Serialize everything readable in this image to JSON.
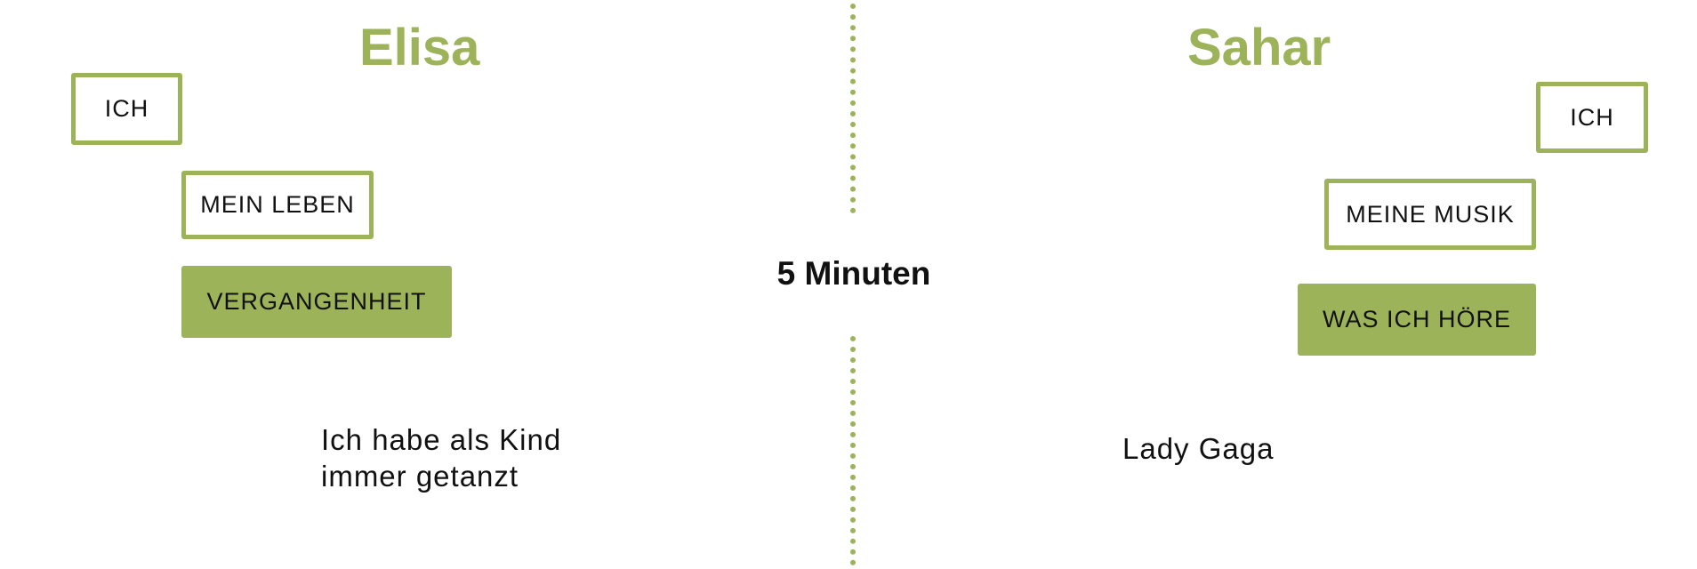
{
  "left": {
    "name": "Elisa",
    "tags": {
      "ich": "ICH",
      "topic": "MEIN LEBEN",
      "subtopic": "VERGANGENHEIT"
    },
    "note_lines": [
      "Ich habe als Kind",
      "immer getanzt"
    ]
  },
  "center": {
    "label": "5 Minuten"
  },
  "right": {
    "name": "Sahar",
    "tags": {
      "ich": "ICH",
      "topic": "MEINE MUSIK",
      "subtopic": "WAS ICH HÖRE"
    },
    "note_lines": [
      "Lady Gaga"
    ]
  },
  "colors": {
    "accent": "#9cb35a",
    "text": "#111111",
    "background": "#ffffff"
  }
}
